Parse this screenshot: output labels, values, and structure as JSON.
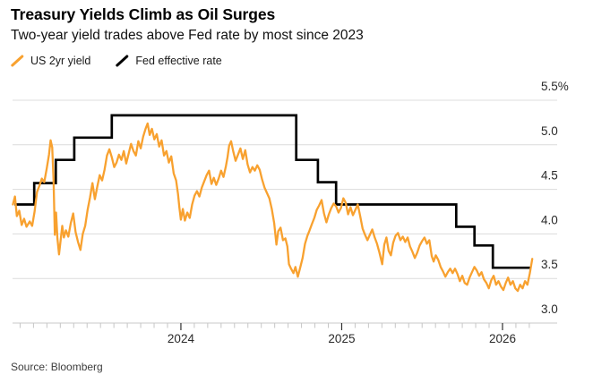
{
  "header": {
    "title": "Treasury Yields Climb as Oil Surges",
    "subtitle": "Two-year yield trades above Fed rate by most since 2023"
  },
  "legend": {
    "items": [
      {
        "label": "US 2yr yield",
        "color": "#F8A12F"
      },
      {
        "label": "Fed effective rate",
        "color": "#000000"
      }
    ]
  },
  "source": "Source: Bloomberg",
  "colors": {
    "background": "#ffffff",
    "gridline": "#dcdcdc",
    "axis_line": "#c9c9c9",
    "minor_tick": "#c6c6c6",
    "major_tick": "#2f2f2f",
    "axis_label": "#2a2a2a",
    "us2yr_line": "#F8A12F",
    "fed_line": "#000000"
  },
  "chart_data": {
    "type": "line",
    "title": "Treasury Yields Climb as Oil Surges",
    "subtitle": "Two-year yield trades above Fed rate by most since 2023",
    "legend_position": "top-left",
    "x_axis": {
      "unit": "year",
      "min": 2022.953,
      "max": 2026.34,
      "data_end": 2026.19,
      "major_ticks": [
        2024,
        2025,
        2026
      ],
      "tick_labels": [
        "2024",
        "2025",
        "2026"
      ],
      "minor_tick_interval": 0.083333,
      "minor_tick_start": 2023.0
    },
    "y_axis": {
      "unit": "%",
      "min": 3.0,
      "max": 5.5,
      "tick_values": [
        5.5,
        5.0,
        4.5,
        4.0,
        3.5,
        3.0
      ],
      "tick_labels": [
        "5.5%",
        "5.0",
        "4.5",
        "4.0",
        "3.5",
        "3.0"
      ],
      "grid": true,
      "side": "right"
    },
    "series": [
      {
        "name": "US 2yr yield",
        "style": "line",
        "color": "#F8A12F",
        "points": [
          [
            2022.955,
            4.33
          ],
          [
            2022.968,
            4.42
          ],
          [
            2022.98,
            4.2
          ],
          [
            2022.995,
            4.26
          ],
          [
            2023.01,
            4.1
          ],
          [
            2023.025,
            4.17
          ],
          [
            2023.04,
            4.08
          ],
          [
            2023.06,
            4.14
          ],
          [
            2023.075,
            4.09
          ],
          [
            2023.09,
            4.25
          ],
          [
            2023.105,
            4.47
          ],
          [
            2023.12,
            4.54
          ],
          [
            2023.135,
            4.62
          ],
          [
            2023.15,
            4.58
          ],
          [
            2023.165,
            4.73
          ],
          [
            2023.18,
            4.89
          ],
          [
            2023.19,
            5.05
          ],
          [
            2023.2,
            4.97
          ],
          [
            2023.208,
            4.6
          ],
          [
            2023.216,
            3.99
          ],
          [
            2023.224,
            4.24
          ],
          [
            2023.232,
            3.95
          ],
          [
            2023.242,
            3.77
          ],
          [
            2023.252,
            3.93
          ],
          [
            2023.262,
            4.09
          ],
          [
            2023.272,
            3.96
          ],
          [
            2023.285,
            4.04
          ],
          [
            2023.3,
            3.97
          ],
          [
            2023.315,
            4.12
          ],
          [
            2023.33,
            4.23
          ],
          [
            2023.345,
            4.02
          ],
          [
            2023.36,
            3.91
          ],
          [
            2023.375,
            3.82
          ],
          [
            2023.39,
            4.0
          ],
          [
            2023.405,
            4.09
          ],
          [
            2023.42,
            4.27
          ],
          [
            2023.435,
            4.41
          ],
          [
            2023.45,
            4.57
          ],
          [
            2023.465,
            4.39
          ],
          [
            2023.48,
            4.53
          ],
          [
            2023.495,
            4.66
          ],
          [
            2023.51,
            4.6
          ],
          [
            2023.525,
            4.72
          ],
          [
            2023.54,
            4.88
          ],
          [
            2023.555,
            4.95
          ],
          [
            2023.57,
            4.86
          ],
          [
            2023.585,
            4.75
          ],
          [
            2023.6,
            4.8
          ],
          [
            2023.615,
            4.89
          ],
          [
            2023.63,
            4.83
          ],
          [
            2023.645,
            4.93
          ],
          [
            2023.66,
            4.79
          ],
          [
            2023.675,
            4.9
          ],
          [
            2023.69,
            5.01
          ],
          [
            2023.705,
            4.93
          ],
          [
            2023.72,
            4.88
          ],
          [
            2023.735,
            5.04
          ],
          [
            2023.75,
            4.96
          ],
          [
            2023.765,
            5.09
          ],
          [
            2023.78,
            5.18
          ],
          [
            2023.793,
            5.24
          ],
          [
            2023.806,
            5.11
          ],
          [
            2023.82,
            5.18
          ],
          [
            2023.835,
            5.06
          ],
          [
            2023.85,
            5.12
          ],
          [
            2023.865,
            4.98
          ],
          [
            2023.88,
            5.05
          ],
          [
            2023.895,
            4.88
          ],
          [
            2023.91,
            4.93
          ],
          [
            2023.925,
            4.8
          ],
          [
            2023.94,
            4.87
          ],
          [
            2023.955,
            4.68
          ],
          [
            2023.97,
            4.6
          ],
          [
            2023.982,
            4.45
          ],
          [
            2023.99,
            4.3
          ],
          [
            2024.0,
            4.16
          ],
          [
            2024.012,
            4.28
          ],
          [
            2024.025,
            4.15
          ],
          [
            2024.04,
            4.24
          ],
          [
            2024.055,
            4.18
          ],
          [
            2024.07,
            4.33
          ],
          [
            2024.085,
            4.43
          ],
          [
            2024.1,
            4.48
          ],
          [
            2024.115,
            4.42
          ],
          [
            2024.13,
            4.52
          ],
          [
            2024.145,
            4.59
          ],
          [
            2024.16,
            4.66
          ],
          [
            2024.175,
            4.71
          ],
          [
            2024.19,
            4.56
          ],
          [
            2024.205,
            4.63
          ],
          [
            2024.22,
            4.55
          ],
          [
            2024.235,
            4.62
          ],
          [
            2024.25,
            4.71
          ],
          [
            2024.265,
            4.64
          ],
          [
            2024.28,
            4.76
          ],
          [
            2024.29,
            4.86
          ],
          [
            2024.3,
            4.99
          ],
          [
            2024.312,
            5.04
          ],
          [
            2024.325,
            4.93
          ],
          [
            2024.34,
            4.82
          ],
          [
            2024.355,
            4.89
          ],
          [
            2024.37,
            4.96
          ],
          [
            2024.385,
            4.84
          ],
          [
            2024.4,
            4.94
          ],
          [
            2024.415,
            4.78
          ],
          [
            2024.43,
            4.69
          ],
          [
            2024.445,
            4.75
          ],
          [
            2024.46,
            4.71
          ],
          [
            2024.475,
            4.77
          ],
          [
            2024.49,
            4.72
          ],
          [
            2024.505,
            4.61
          ],
          [
            2024.52,
            4.52
          ],
          [
            2024.535,
            4.46
          ],
          [
            2024.55,
            4.4
          ],
          [
            2024.565,
            4.28
          ],
          [
            2024.58,
            4.12
          ],
          [
            2024.594,
            3.88
          ],
          [
            2024.605,
            4.03
          ],
          [
            2024.62,
            4.07
          ],
          [
            2024.635,
            3.93
          ],
          [
            2024.65,
            3.95
          ],
          [
            2024.662,
            3.86
          ],
          [
            2024.672,
            3.66
          ],
          [
            2024.685,
            3.61
          ],
          [
            2024.7,
            3.56
          ],
          [
            2024.712,
            3.63
          ],
          [
            2024.727,
            3.52
          ],
          [
            2024.742,
            3.62
          ],
          [
            2024.757,
            3.73
          ],
          [
            2024.772,
            3.89
          ],
          [
            2024.787,
            3.98
          ],
          [
            2024.8,
            4.04
          ],
          [
            2024.815,
            4.11
          ],
          [
            2024.83,
            4.18
          ],
          [
            2024.845,
            4.27
          ],
          [
            2024.86,
            4.32
          ],
          [
            2024.875,
            4.38
          ],
          [
            2024.89,
            4.23
          ],
          [
            2024.905,
            4.13
          ],
          [
            2024.92,
            4.22
          ],
          [
            2024.935,
            4.29
          ],
          [
            2024.95,
            4.34
          ],
          [
            2024.965,
            4.31
          ],
          [
            2024.98,
            4.24
          ],
          [
            2024.995,
            4.29
          ],
          [
            2025.01,
            4.4
          ],
          [
            2025.025,
            4.35
          ],
          [
            2025.04,
            4.22
          ],
          [
            2025.055,
            4.3
          ],
          [
            2025.07,
            4.21
          ],
          [
            2025.085,
            4.27
          ],
          [
            2025.1,
            4.33
          ],
          [
            2025.115,
            4.2
          ],
          [
            2025.13,
            4.06
          ],
          [
            2025.145,
            3.99
          ],
          [
            2025.16,
            3.93
          ],
          [
            2025.175,
            3.99
          ],
          [
            2025.19,
            4.05
          ],
          [
            2025.205,
            3.96
          ],
          [
            2025.22,
            3.89
          ],
          [
            2025.235,
            3.79
          ],
          [
            2025.252,
            3.66
          ],
          [
            2025.265,
            3.88
          ],
          [
            2025.278,
            3.96
          ],
          [
            2025.292,
            3.81
          ],
          [
            2025.306,
            3.76
          ],
          [
            2025.32,
            3.9
          ],
          [
            2025.335,
            3.98
          ],
          [
            2025.35,
            4.01
          ],
          [
            2025.365,
            3.93
          ],
          [
            2025.38,
            3.97
          ],
          [
            2025.395,
            3.91
          ],
          [
            2025.41,
            3.96
          ],
          [
            2025.425,
            3.86
          ],
          [
            2025.44,
            3.8
          ],
          [
            2025.455,
            3.73
          ],
          [
            2025.47,
            3.79
          ],
          [
            2025.485,
            3.87
          ],
          [
            2025.5,
            3.92
          ],
          [
            2025.515,
            3.96
          ],
          [
            2025.53,
            3.89
          ],
          [
            2025.545,
            3.93
          ],
          [
            2025.56,
            3.75
          ],
          [
            2025.572,
            3.69
          ],
          [
            2025.585,
            3.76
          ],
          [
            2025.6,
            3.71
          ],
          [
            2025.615,
            3.63
          ],
          [
            2025.63,
            3.58
          ],
          [
            2025.645,
            3.52
          ],
          [
            2025.66,
            3.57
          ],
          [
            2025.675,
            3.61
          ],
          [
            2025.69,
            3.56
          ],
          [
            2025.705,
            3.61
          ],
          [
            2025.72,
            3.55
          ],
          [
            2025.735,
            3.47
          ],
          [
            2025.75,
            3.53
          ],
          [
            2025.765,
            3.45
          ],
          [
            2025.78,
            3.43
          ],
          [
            2025.795,
            3.51
          ],
          [
            2025.81,
            3.57
          ],
          [
            2025.825,
            3.63
          ],
          [
            2025.84,
            3.59
          ],
          [
            2025.855,
            3.53
          ],
          [
            2025.87,
            3.57
          ],
          [
            2025.885,
            3.49
          ],
          [
            2025.9,
            3.45
          ],
          [
            2025.915,
            3.39
          ],
          [
            2025.93,
            3.48
          ],
          [
            2025.945,
            3.53
          ],
          [
            2025.96,
            3.43
          ],
          [
            2025.975,
            3.47
          ],
          [
            2025.99,
            3.41
          ],
          [
            2026.005,
            3.37
          ],
          [
            2026.02,
            3.45
          ],
          [
            2026.035,
            3.51
          ],
          [
            2026.05,
            3.43
          ],
          [
            2026.065,
            3.47
          ],
          [
            2026.08,
            3.39
          ],
          [
            2026.095,
            3.36
          ],
          [
            2026.11,
            3.43
          ],
          [
            2026.125,
            3.39
          ],
          [
            2026.14,
            3.47
          ],
          [
            2026.155,
            3.43
          ],
          [
            2026.17,
            3.56
          ],
          [
            2026.185,
            3.72
          ]
        ]
      },
      {
        "name": "Fed effective rate",
        "style": "step",
        "color": "#000000",
        "points": [
          [
            2022.965,
            4.33
          ],
          [
            2023.088,
            4.57
          ],
          [
            2023.222,
            4.83
          ],
          [
            2023.337,
            5.08
          ],
          [
            2023.57,
            5.33
          ],
          [
            2024.717,
            4.83
          ],
          [
            2024.852,
            4.58
          ],
          [
            2024.965,
            4.33
          ],
          [
            2025.712,
            4.08
          ],
          [
            2025.826,
            3.87
          ],
          [
            2025.94,
            3.62
          ],
          [
            2026.18,
            3.62
          ]
        ]
      }
    ]
  }
}
